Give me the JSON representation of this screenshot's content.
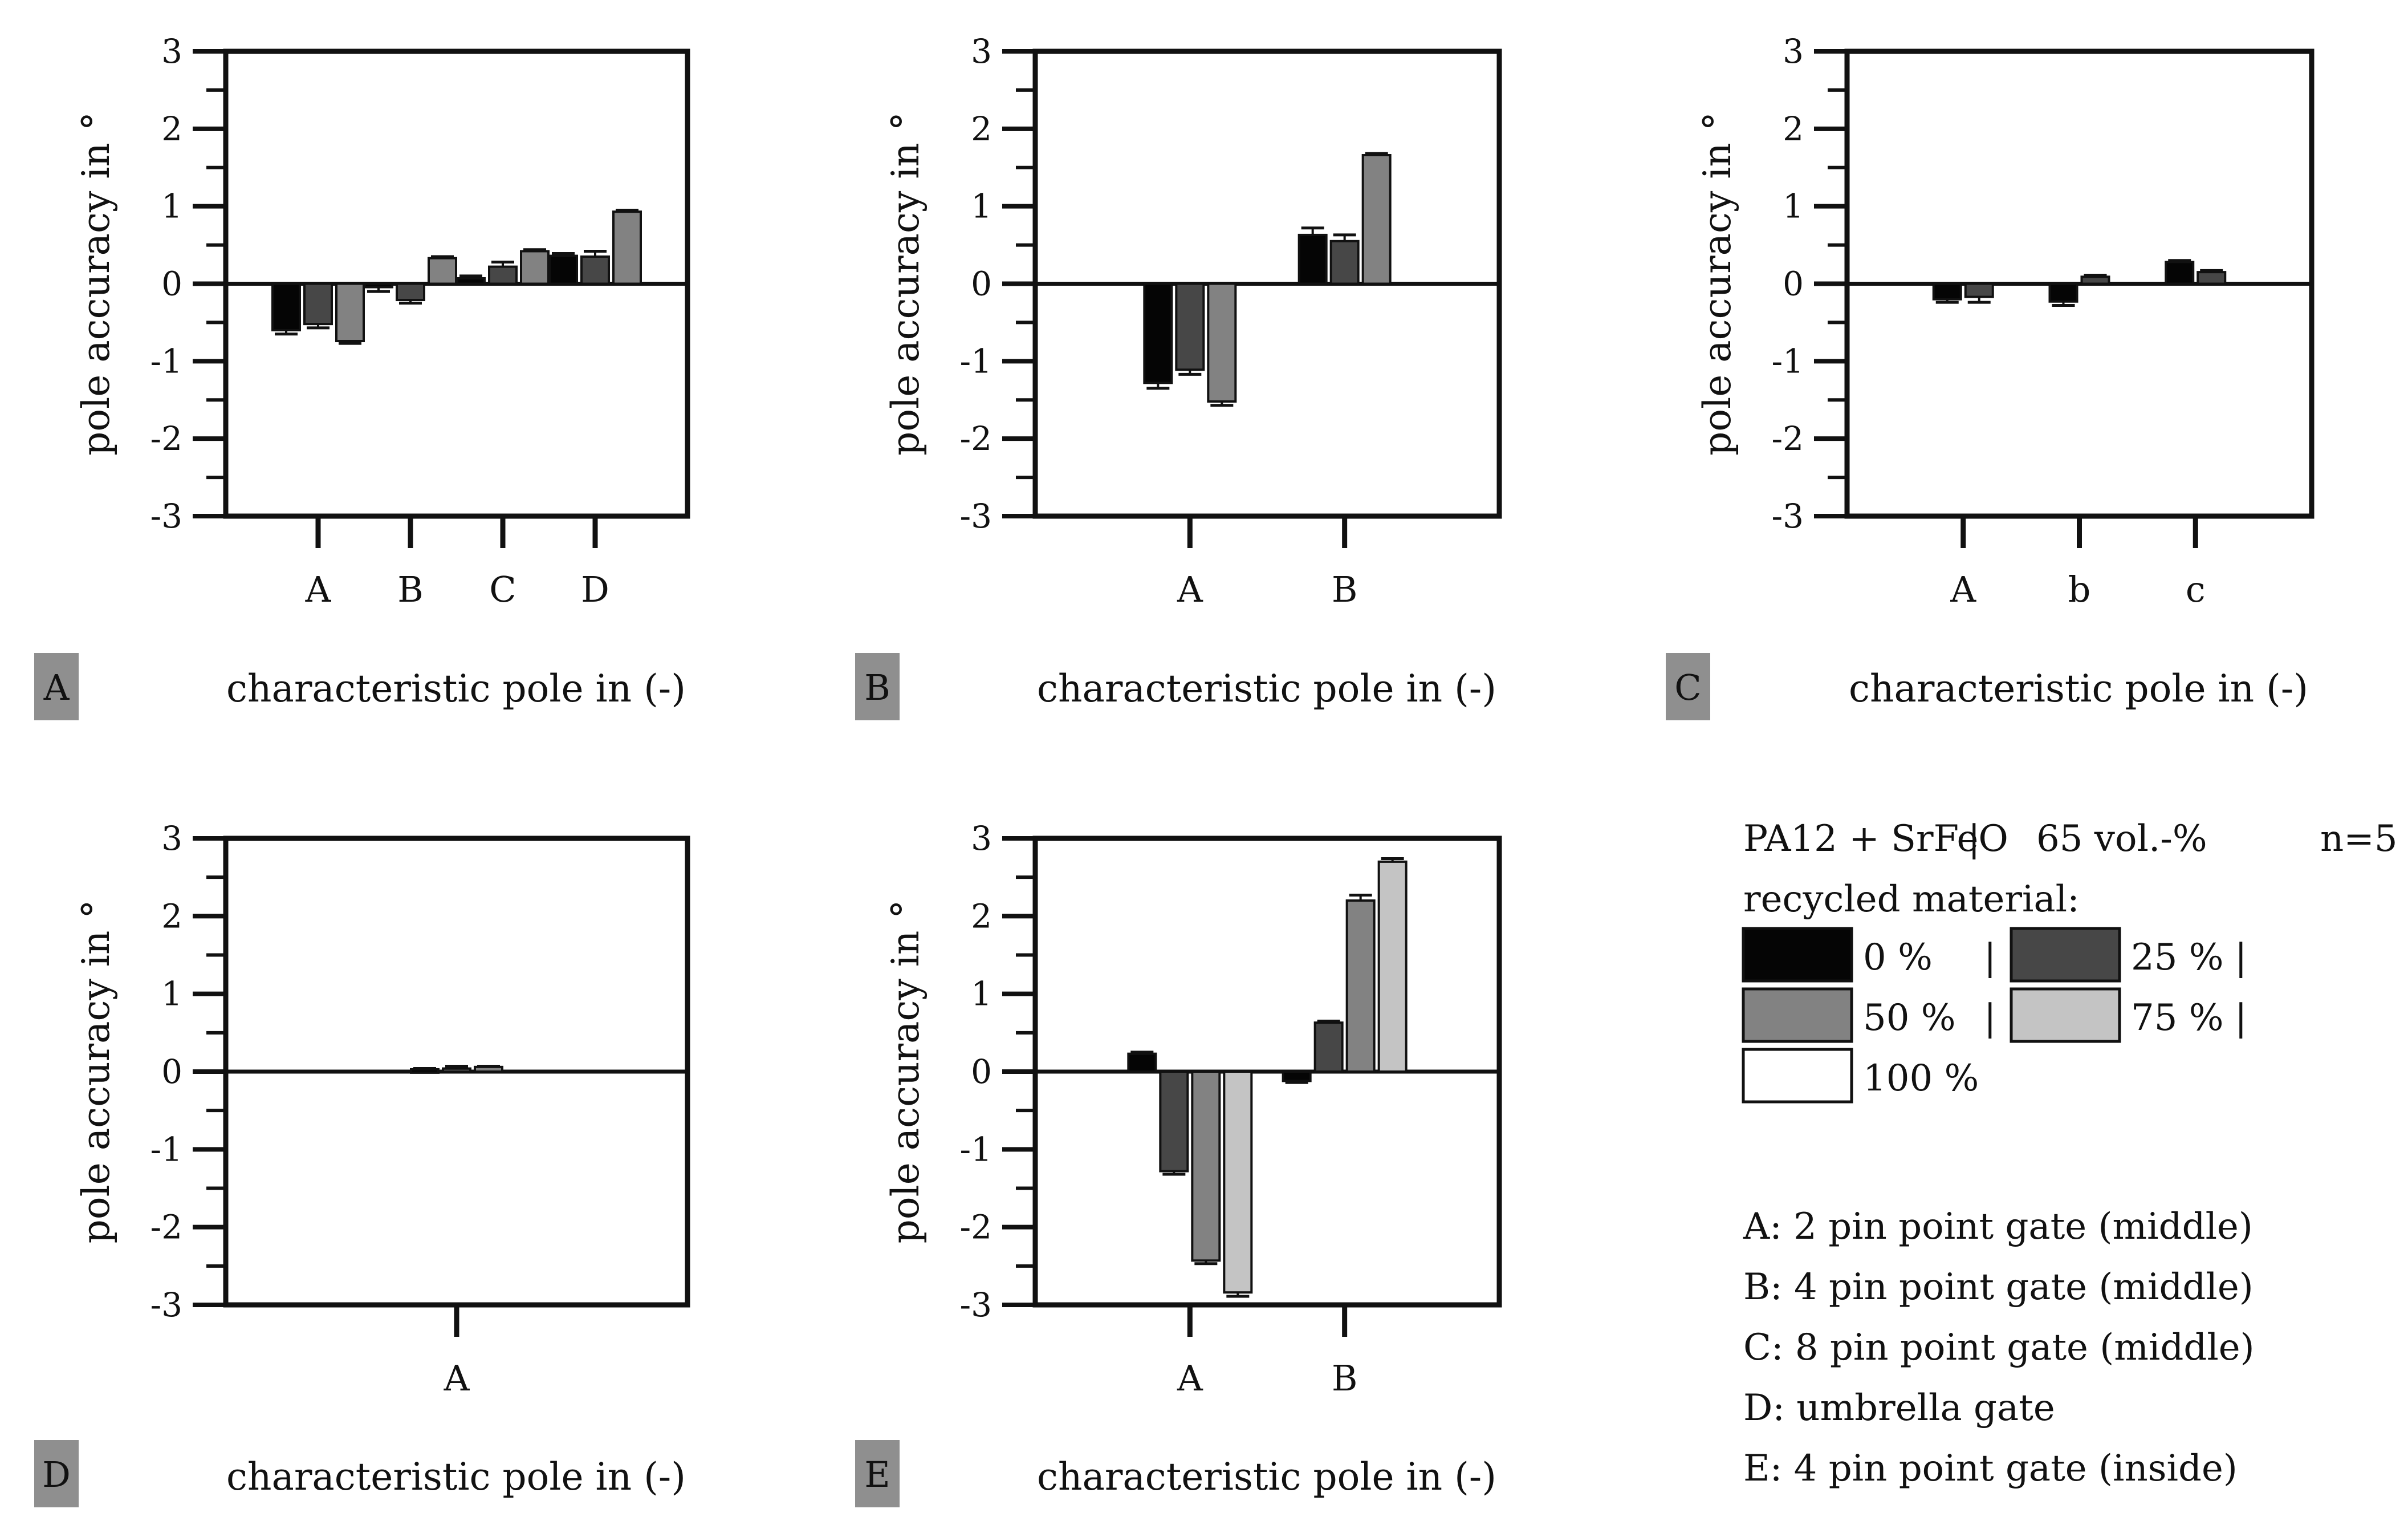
{
  "chart_data": [
    {
      "panel": "A",
      "type": "bar",
      "xlabel": "characteristic pole in (-)",
      "ylabel": "pole accuracy in °",
      "ylim": [
        -3,
        3
      ],
      "yticks": [
        "3",
        "2",
        "1",
        "0",
        "-1",
        "-2",
        "-3"
      ],
      "categories": [
        "A",
        "B",
        "C",
        "D"
      ],
      "series": [
        {
          "name": "0 %",
          "values": [
            -0.6,
            -0.04,
            0.07,
            0.36
          ],
          "errors": [
            0.05,
            0.06,
            0.03,
            0.03
          ]
        },
        {
          "name": "25 %",
          "values": [
            -0.52,
            -0.21,
            0.22,
            0.35
          ],
          "errors": [
            0.05,
            0.04,
            0.06,
            0.07
          ]
        },
        {
          "name": "50 %",
          "values": [
            -0.74,
            0.33,
            0.42,
            0.93
          ],
          "errors": [
            0.03,
            0.02,
            0.02,
            0.02
          ]
        }
      ]
    },
    {
      "panel": "B",
      "type": "bar",
      "xlabel": "characteristic pole in (-)",
      "ylabel": "pole accuracy in °",
      "ylim": [
        -3,
        3
      ],
      "yticks": [
        "3",
        "2",
        "1",
        "0",
        "-1",
        "-2",
        "-3"
      ],
      "categories": [
        "A",
        "B"
      ],
      "series": [
        {
          "name": "0 %",
          "values": [
            -1.28,
            0.63
          ],
          "errors": [
            0.07,
            0.09
          ]
        },
        {
          "name": "25 %",
          "values": [
            -1.11,
            0.55
          ],
          "errors": [
            0.06,
            0.08
          ]
        },
        {
          "name": "50 %",
          "values": [
            -1.52,
            1.66
          ],
          "errors": [
            0.05,
            0.02
          ]
        }
      ]
    },
    {
      "panel": "C",
      "type": "bar",
      "xlabel": "characteristic pole in (-)",
      "ylabel": "pole accuracy in °",
      "ylim": [
        -3,
        3
      ],
      "yticks": [
        "3",
        "2",
        "1",
        "0",
        "-1",
        "-2",
        "-3"
      ],
      "categories": [
        "A",
        "b",
        "c"
      ],
      "series": [
        {
          "name": "0 %",
          "values": [
            -0.2,
            -0.23,
            0.28
          ],
          "errors": [
            0.04,
            0.05,
            0.02
          ]
        },
        {
          "name": "25 %",
          "values": [
            -0.17,
            0.09,
            0.15
          ],
          "errors": [
            0.07,
            0.02,
            0.02
          ]
        }
      ]
    },
    {
      "panel": "D",
      "type": "bar",
      "xlabel": "characteristic pole in (-)",
      "ylabel": "pole accuracy in °",
      "ylim": [
        -3,
        3
      ],
      "yticks": [
        "3",
        "2",
        "1",
        "0",
        "-1",
        "-2",
        "-3"
      ],
      "categories": [
        "A"
      ],
      "series": [
        {
          "name": "0 %",
          "values": [
            0.03
          ],
          "errors": [
            0.01
          ]
        },
        {
          "name": "25 %",
          "values": [
            0.04
          ],
          "errors": [
            0.03
          ]
        },
        {
          "name": "50 %",
          "values": [
            0.06
          ],
          "errors": [
            0.01
          ]
        }
      ]
    },
    {
      "panel": "E",
      "type": "bar",
      "xlabel": "characteristic pole in (-)",
      "ylabel": "pole accuracy in °",
      "ylim": [
        -3,
        3
      ],
      "yticks": [
        "3",
        "2",
        "1",
        "0",
        "-1",
        "-2",
        "-3"
      ],
      "categories": [
        "A",
        "B"
      ],
      "series": [
        {
          "name": "0 %",
          "values": [
            0.23,
            -0.12
          ],
          "errors": [
            0.02,
            0.02
          ]
        },
        {
          "name": "25 %",
          "values": [
            -1.28,
            0.63
          ],
          "errors": [
            0.04,
            0.02
          ]
        },
        {
          "name": "50 %",
          "values": [
            -2.43,
            2.2
          ],
          "errors": [
            0.04,
            0.07
          ]
        },
        {
          "name": "75 %",
          "values": [
            -2.84,
            2.7
          ],
          "errors": [
            0.05,
            0.04
          ]
        }
      ]
    }
  ],
  "colors": {
    "0 %": "#050505",
    "25 %": "#474747",
    "50 %": "#828282",
    "75 %": "#c4c4c4",
    "100 %": "#ffffff",
    "axis": "#111111",
    "panel_tag_bg": "#8f8f8f"
  },
  "legend": {
    "material": "PA12 + SrFeO",
    "separator": "|",
    "fraction": "65 vol.-%",
    "n": "n=5",
    "heading": "recycled material:",
    "items": [
      {
        "label": "0 %",
        "suffix": "|"
      },
      {
        "label": "25 %",
        "suffix": "|"
      },
      {
        "label": "50 %",
        "suffix": "|"
      },
      {
        "label": "75 %",
        "suffix": "|"
      },
      {
        "label": "100 %",
        "suffix": ""
      }
    ],
    "notes": [
      "A: 2 pin point gate (middle)",
      "B: 4 pin point gate (middle)",
      "C: 8 pin point gate (middle)",
      "D: umbrella gate",
      "E: 4 pin point gate (inside)"
    ]
  }
}
